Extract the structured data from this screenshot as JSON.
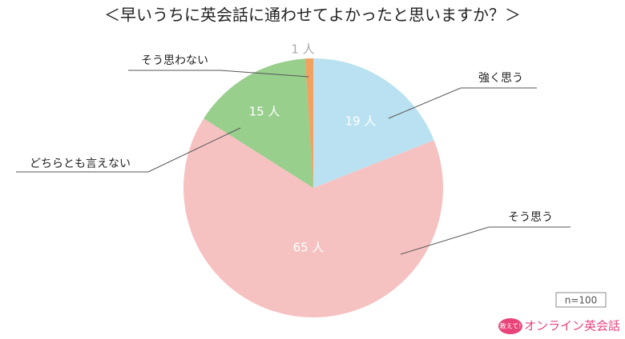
{
  "chart_data": {
    "type": "pie",
    "title": "＜早いうちに英会話に通わせてよかったと思いますか？＞",
    "categories": [
      "強く思う",
      "そう思う",
      "どちらとも言えない",
      "そう思わない"
    ],
    "values": [
      19,
      65,
      15,
      1
    ],
    "value_labels": [
      "19 人",
      "65 人",
      "15 人",
      "1 人"
    ],
    "colors": [
      "#b9e1f1",
      "#f6c2c1",
      "#98cf8d",
      "#f1a160"
    ],
    "note": "n=100",
    "brand": {
      "badge": "教えて!",
      "name": "オンライン英会話"
    }
  }
}
